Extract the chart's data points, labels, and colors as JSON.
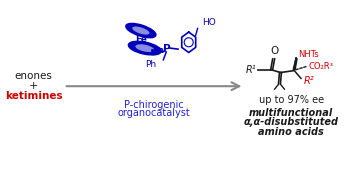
{
  "bg_color": "#ffffff",
  "left_text_enones": "enones",
  "left_text_plus": "+",
  "left_text_ketimines": "ketimines",
  "left_text_color_enones": "#1a1a1a",
  "left_text_color_ketimines": "#cc0000",
  "catalyst_label_line1": "P-chirogenic",
  "catalyst_label_line2": "organocatalyst",
  "catalyst_label_color": "#2222cc",
  "arrow_color": "#888888",
  "result_text1": "up to 97% ee",
  "result_text2_italic": "multifunctional",
  "result_text3_italic": "α,α-disubstituted",
  "result_text4_italic": "amino acids",
  "ferrocene_color": "#0000bb",
  "product_black": "#1a1a1a",
  "product_red": "#cc0000",
  "figsize": [
    3.5,
    1.89
  ],
  "dpi": 100
}
